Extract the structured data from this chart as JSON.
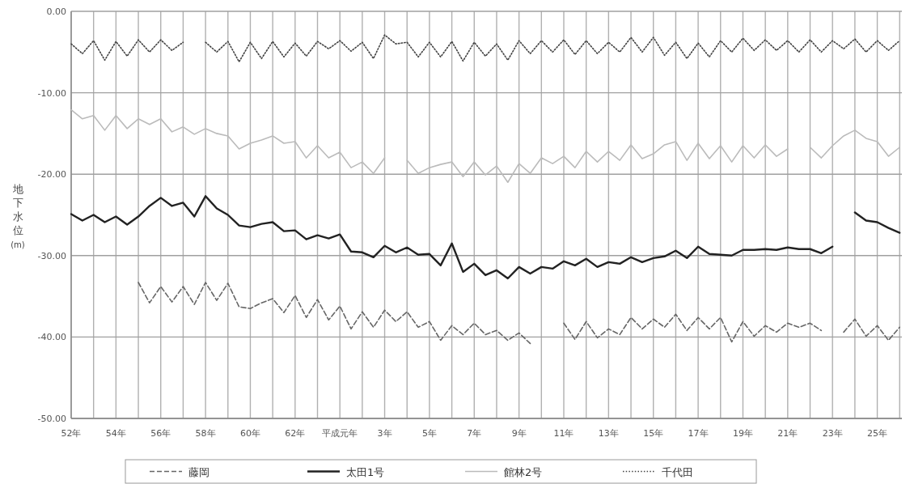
{
  "chart_data": {
    "type": "line",
    "ylabel": "地下水位(m)",
    "categories": [
      "52年",
      null,
      null,
      null,
      "54年",
      null,
      null,
      null,
      "56年",
      null,
      null,
      null,
      "58年",
      null,
      null,
      null,
      "60年",
      null,
      null,
      null,
      "62年",
      null,
      null,
      null,
      "平成元年",
      null,
      null,
      null,
      "3年",
      null,
      null,
      null,
      "5年",
      null,
      null,
      null,
      "7年",
      null,
      null,
      null,
      "9年",
      null,
      null,
      null,
      "11年",
      null,
      null,
      null,
      "13年",
      null,
      null,
      null,
      "15年",
      null,
      null,
      null,
      "17年",
      null,
      null,
      null,
      "19年",
      null,
      null,
      null,
      "21年",
      null,
      null,
      null,
      "23年",
      null,
      null,
      null,
      "25年",
      null,
      null
    ],
    "ylim": [
      -50,
      0
    ],
    "yticks": [
      {
        "value": 0,
        "label": "0.00"
      },
      {
        "value": -10,
        "label": "-10.00"
      },
      {
        "value": -20,
        "label": "-20.00"
      },
      {
        "value": -30,
        "label": "-30.00"
      },
      {
        "value": -40,
        "label": "-40.00"
      },
      {
        "value": -50,
        "label": "-50.00"
      }
    ],
    "grid": true,
    "legend": "bottom",
    "series": [
      {
        "name": "藤岡",
        "color": "#666666",
        "line_style": "dashed",
        "values": [
          null,
          null,
          null,
          null,
          null,
          null,
          -33.3,
          -35.8,
          -33.8,
          -35.7,
          -33.8,
          -36.0,
          -33.3,
          -35.5,
          -33.4,
          -36.3,
          -36.5,
          -35.8,
          -35.3,
          -37.0,
          -34.9,
          -37.6,
          -35.4,
          -37.9,
          -36.2,
          -39.0,
          -36.9,
          -38.8,
          -36.7,
          -38.1,
          -36.9,
          -38.8,
          -38.1,
          -40.4,
          -38.6,
          -39.7,
          -38.3,
          -39.7,
          -39.2,
          -40.4,
          -39.5,
          -40.8,
          null,
          null,
          -38.3,
          -40.3,
          -38.1,
          -40.1,
          -39.0,
          -39.7,
          -37.6,
          -39.0,
          -37.8,
          -38.8,
          -37.2,
          -39.2,
          -37.6,
          -39.0,
          -37.6,
          -40.6,
          -38.1,
          -39.9,
          -38.6,
          -39.4,
          -38.3,
          -38.8,
          -38.3,
          -39.2,
          null,
          -39.4,
          -37.8,
          -39.9,
          -38.6,
          -40.4,
          -38.8
        ]
      },
      {
        "name": "太田1号",
        "color": "#222222",
        "line_style": "solid",
        "values": [
          -24.9,
          -25.7,
          -25.0,
          -25.9,
          -25.2,
          -26.2,
          -25.2,
          -23.9,
          -22.9,
          -23.9,
          -23.5,
          -25.2,
          -22.7,
          -24.2,
          -25.0,
          -26.3,
          -26.5,
          -26.1,
          -25.9,
          -27.0,
          -26.9,
          -28.0,
          -27.5,
          -27.9,
          -27.4,
          -29.5,
          -29.6,
          -30.2,
          -28.8,
          -29.6,
          -29.0,
          -29.9,
          -29.8,
          -31.2,
          -28.5,
          -32.0,
          -31.0,
          -32.4,
          -31.8,
          -32.8,
          -31.4,
          -32.2,
          -31.4,
          -31.6,
          -30.7,
          -31.2,
          -30.4,
          -31.4,
          -30.8,
          -31.0,
          -30.2,
          -30.8,
          -30.3,
          -30.1,
          -29.4,
          -30.3,
          -28.9,
          -29.8,
          -29.9,
          -30.0,
          -29.3,
          -29.3,
          -29.2,
          -29.3,
          -29.0,
          -29.2,
          -29.2,
          -29.7,
          -28.9,
          null,
          -24.7,
          -25.7,
          -25.9,
          -26.6,
          -27.2
        ]
      },
      {
        "name": "館林2号",
        "color": "#bbbbbb",
        "line_style": "solid",
        "values": [
          -12.1,
          -13.2,
          -12.8,
          -14.6,
          -12.8,
          -14.4,
          -13.2,
          -13.9,
          -13.2,
          -14.8,
          -14.2,
          -15.1,
          -14.4,
          -15.0,
          -15.3,
          -16.9,
          -16.2,
          -15.8,
          -15.3,
          -16.2,
          -16.0,
          -18.0,
          -16.5,
          -18.0,
          -17.3,
          -19.2,
          -18.5,
          -19.9,
          -18.0,
          null,
          -18.3,
          -19.9,
          -19.2,
          -18.8,
          -18.5,
          -20.3,
          -18.5,
          -20.1,
          -19.0,
          -21.0,
          -18.7,
          -19.9,
          -18.0,
          -18.7,
          -17.8,
          -19.2,
          -17.2,
          -18.5,
          -17.2,
          -18.3,
          -16.4,
          -18.1,
          -17.5,
          -16.4,
          -16.0,
          -18.3,
          -16.2,
          -18.1,
          -16.5,
          -18.5,
          -16.5,
          -18.0,
          -16.4,
          -17.8,
          -16.9,
          null,
          -16.7,
          -18.0,
          -16.5,
          -15.3,
          -14.6,
          -15.6,
          -16.0,
          -17.8,
          -16.7
        ]
      },
      {
        "name": "千代田",
        "color": "#444444",
        "line_style": "dotted",
        "values": [
          -4.0,
          -5.2,
          -3.6,
          -6.0,
          -3.7,
          -5.5,
          -3.5,
          -5.0,
          -3.5,
          -4.8,
          -3.8,
          null,
          -3.8,
          -5.0,
          -3.7,
          -6.2,
          -3.8,
          -5.8,
          -3.7,
          -5.6,
          -3.9,
          -5.5,
          -3.7,
          -4.6,
          -3.6,
          -4.9,
          -3.8,
          -5.8,
          -2.9,
          -4.0,
          -3.8,
          -5.6,
          -3.8,
          -5.6,
          -3.7,
          -6.1,
          -3.8,
          -5.5,
          -4.0,
          -6.0,
          -3.6,
          -5.2,
          -3.6,
          -5.0,
          -3.5,
          -5.3,
          -3.6,
          -5.2,
          -3.8,
          -5.0,
          -3.2,
          -5.0,
          -3.2,
          -5.4,
          -3.8,
          -5.8,
          -3.9,
          -5.6,
          -3.6,
          -5.0,
          -3.3,
          -4.8,
          -3.5,
          -4.8,
          -3.6,
          -5.0,
          -3.5,
          -5.0,
          -3.6,
          -4.6,
          -3.4,
          -5.0,
          -3.6,
          -4.8,
          -3.6
        ]
      }
    ]
  }
}
